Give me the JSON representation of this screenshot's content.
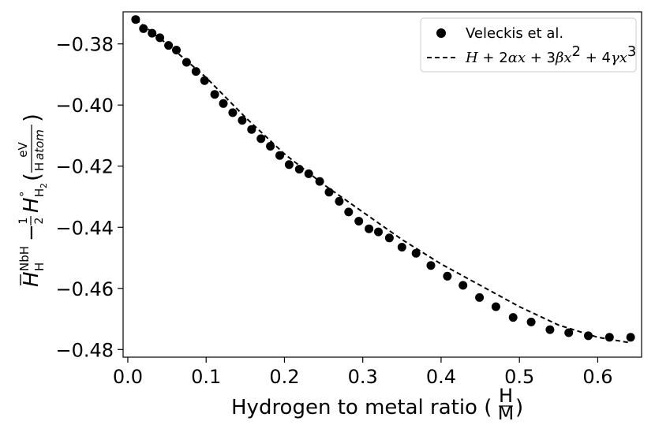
{
  "chart_data": {
    "type": "scatter",
    "title": "",
    "xlabel": "Hydrogen to metal ratio (",
    "xlabel_frac": {
      "num": "H",
      "den": "M"
    },
    "xlabel_close": ")",
    "ylabel": {
      "symbol": "H",
      "superscript": "NbH",
      "subscript": "H",
      "minus": "−",
      "half": {
        "num": "1",
        "den": "2"
      },
      "symbol2": "H",
      "superscript2": "°",
      "subscript2": "H",
      "subscript2_sub": "2",
      "unit_open": "(",
      "unit_num": "eV",
      "unit_den_roman": "H",
      "unit_den_italic": "atom",
      "unit_close": ")"
    },
    "xlim": [
      -0.006,
      0.656
    ],
    "ylim": [
      -0.4825,
      -0.3695
    ],
    "xticks": [
      0.0,
      0.1,
      0.2,
      0.3,
      0.4,
      0.5,
      0.6
    ],
    "xtick_labels": [
      "0.0",
      "0.1",
      "0.2",
      "0.3",
      "0.4",
      "0.5",
      "0.6"
    ],
    "yticks": [
      -0.38,
      -0.4,
      -0.42,
      -0.44,
      -0.46,
      -0.48
    ],
    "ytick_labels": [
      "−0.38",
      "−0.40",
      "−0.42",
      "−0.44",
      "−0.46",
      "−0.48"
    ],
    "legend_position": "top-right",
    "series": [
      {
        "name": "Veleckis et al.",
        "kind": "scatter",
        "color": "#000000",
        "x": [
          0.01,
          0.02,
          0.031,
          0.041,
          0.052,
          0.062,
          0.075,
          0.087,
          0.098,
          0.111,
          0.122,
          0.134,
          0.146,
          0.158,
          0.17,
          0.182,
          0.194,
          0.206,
          0.219,
          0.231,
          0.245,
          0.257,
          0.27,
          0.282,
          0.295,
          0.308,
          0.32,
          0.334,
          0.35,
          0.368,
          0.387,
          0.408,
          0.428,
          0.449,
          0.47,
          0.492,
          0.515,
          0.539,
          0.563,
          0.588,
          0.615,
          0.642
        ],
        "y": [
          -0.372,
          -0.375,
          -0.3765,
          -0.378,
          -0.3805,
          -0.382,
          -0.386,
          -0.389,
          -0.392,
          -0.3965,
          -0.3995,
          -0.4025,
          -0.405,
          -0.408,
          -0.411,
          -0.4135,
          -0.4165,
          -0.4195,
          -0.421,
          -0.4225,
          -0.425,
          -0.4285,
          -0.4315,
          -0.435,
          -0.438,
          -0.4405,
          -0.4415,
          -0.4435,
          -0.4465,
          -0.4485,
          -0.4525,
          -0.456,
          -0.459,
          -0.463,
          -0.466,
          -0.4695,
          -0.471,
          -0.4735,
          -0.4745,
          -0.4755,
          -0.476,
          -0.476
        ]
      },
      {
        "name": "H + 2αx + 3βx² + 4γx³",
        "kind": "line",
        "style": "dashed",
        "color": "#000000",
        "x": [
          0.01,
          0.05,
          0.1,
          0.15,
          0.2,
          0.25,
          0.3,
          0.35,
          0.4,
          0.45,
          0.5,
          0.55,
          0.6,
          0.642
        ],
        "y": [
          -0.372,
          -0.38,
          -0.391,
          -0.404,
          -0.416,
          -0.426,
          -0.435,
          -0.444,
          -0.452,
          -0.459,
          -0.466,
          -0.472,
          -0.476,
          -0.4778
        ]
      }
    ],
    "legend": {
      "entries": [
        {
          "label": "Veleckis et al."
        },
        {
          "label_parts": [
            "H",
            " + 2",
            "αx",
            " + 3",
            "βx",
            "2",
            " + 4",
            "γx",
            "3"
          ]
        }
      ]
    }
  }
}
